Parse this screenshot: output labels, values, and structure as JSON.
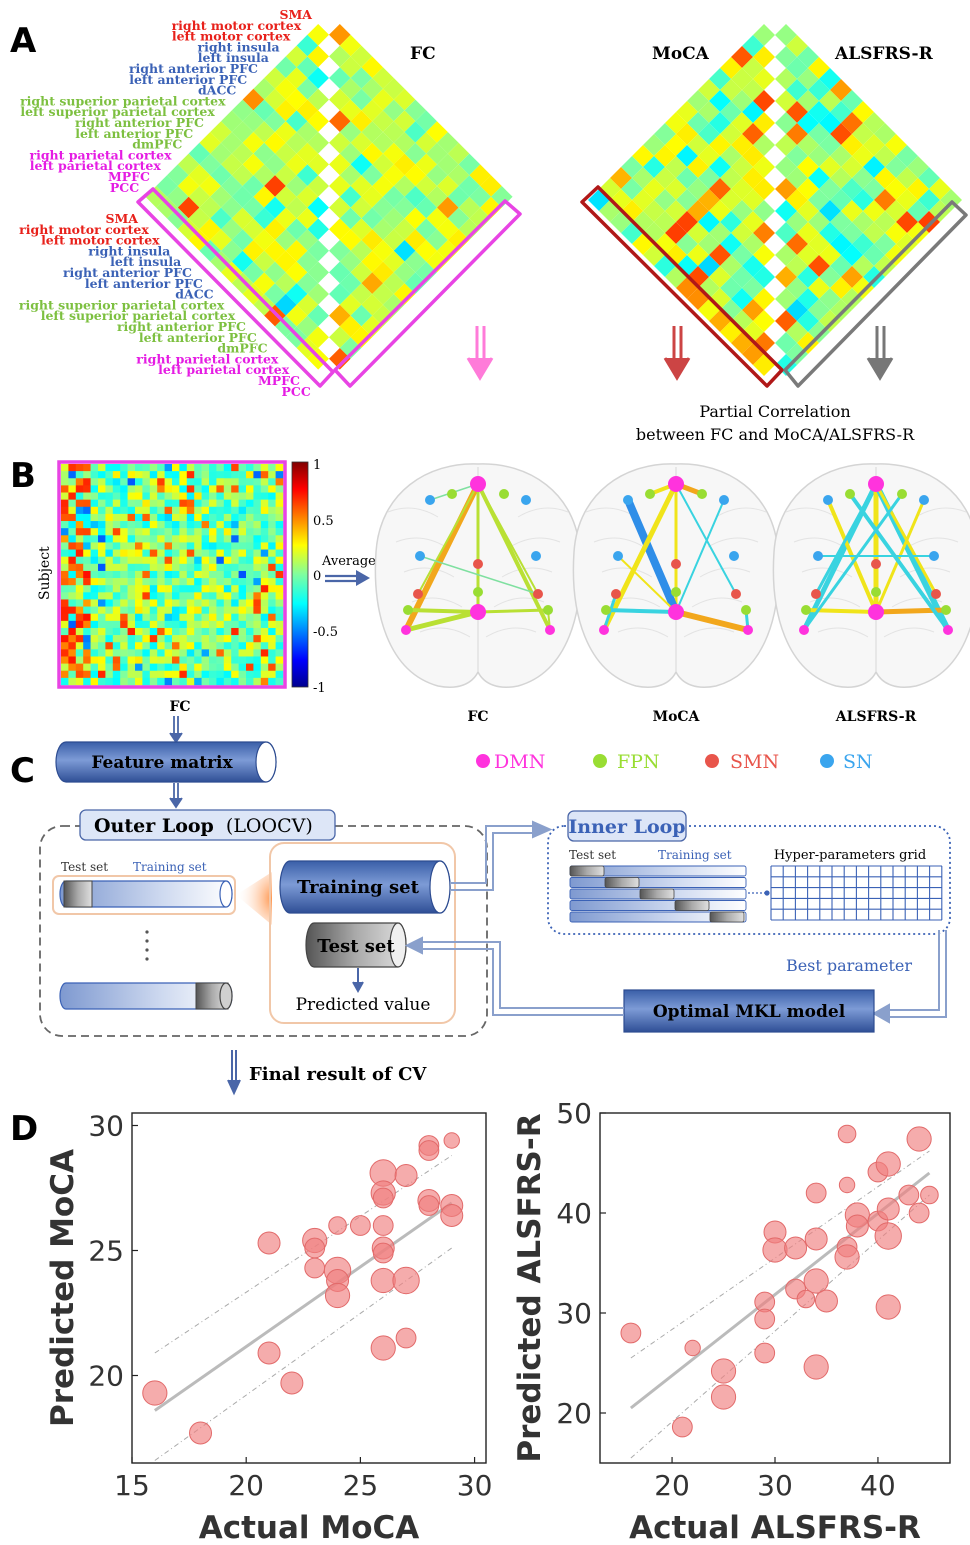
{
  "panels": {
    "a": "A",
    "b": "B",
    "c": "C",
    "d": "D"
  },
  "colors": {
    "dmn": "#ff33dd",
    "fpn": "#99dd33",
    "smn": "#e8554b",
    "sn": "#3aa5ee",
    "roi_red": "#e8211b",
    "roi_blue": "#3b62b6",
    "roi_green": "#7dc040",
    "roi_magenta": "#e51ce3",
    "box_magenta": "#e844e4",
    "box_darkred": "#b01818",
    "box_gray": "#7a7a7a",
    "arrow_pink": "#ff7bd9",
    "arrow_red": "#cc4444",
    "arrow_gray": "#777777",
    "flow_blue": "#7e95c4",
    "dot_red": "#f08080",
    "fit_gray": "#bbbbbb"
  },
  "panel_a": {
    "fc_title": "FC",
    "moca_title": "MoCA",
    "alsfrs_title": "ALSFRS-R",
    "rois_top": [
      {
        "label": "SMA",
        "color": "red"
      },
      {
        "label": "right motor cortex",
        "color": "red"
      },
      {
        "label": "left motor cortex",
        "color": "red"
      },
      {
        "label": "right insula",
        "color": "blue"
      },
      {
        "label": "left insula",
        "color": "blue"
      },
      {
        "label": "right anterior PFC",
        "color": "blue"
      },
      {
        "label": "left anterior PFC",
        "color": "blue"
      },
      {
        "label": "dACC",
        "color": "blue"
      },
      {
        "label": "right superior parietal cortex",
        "color": "green"
      },
      {
        "label": "left superior parietal cortex",
        "color": "green"
      },
      {
        "label": "right anterior PFC",
        "color": "green"
      },
      {
        "label": "left anterior PFC",
        "color": "green"
      },
      {
        "label": "dmPFC",
        "color": "green"
      },
      {
        "label": "right parietal cortex",
        "color": "magenta"
      },
      {
        "label": "left parietal cortex",
        "color": "magenta"
      },
      {
        "label": "MPFC",
        "color": "magenta"
      },
      {
        "label": "PCC",
        "color": "magenta"
      }
    ],
    "rois_bottom": [
      {
        "label": "SMA",
        "color": "red"
      },
      {
        "label": "right motor cortex",
        "color": "red"
      },
      {
        "label": "left motor cortex",
        "color": "red"
      },
      {
        "label": "right insula",
        "color": "blue"
      },
      {
        "label": "left insula",
        "color": "blue"
      },
      {
        "label": "right anterior PFC",
        "color": "blue"
      },
      {
        "label": "left anterior PFC",
        "color": "blue"
      },
      {
        "label": "dACC",
        "color": "blue"
      },
      {
        "label": "right superior parietal cortex",
        "color": "green"
      },
      {
        "label": "left superior parietal cortex",
        "color": "green"
      },
      {
        "label": "right anterior PFC",
        "color": "green"
      },
      {
        "label": "left anterior PFC",
        "color": "green"
      },
      {
        "label": "dmPFC",
        "color": "green"
      },
      {
        "label": "right parietal cortex",
        "color": "magenta"
      },
      {
        "label": "left parietal cortex",
        "color": "magenta"
      },
      {
        "label": "MPFC",
        "color": "magenta"
      },
      {
        "label": "PCC",
        "color": "magenta"
      }
    ],
    "partial_corr_line1": "Partial Correlation",
    "partial_corr_line2": "between FC and MoCA/ALSFRS-R"
  },
  "panel_b": {
    "subject_label": "Subject",
    "fc_label": "FC",
    "average_label": "Average",
    "colorbar_ticks": [
      "1",
      "0.5",
      "0",
      "-0.5",
      "-1"
    ],
    "brain_labels": [
      "FC",
      "MoCA",
      "ALSFRS-R"
    ]
  },
  "legend": [
    {
      "label": "DMN",
      "key": "dmn"
    },
    {
      "label": "FPN",
      "key": "fpn"
    },
    {
      "label": "SMN",
      "key": "smn"
    },
    {
      "label": "SN",
      "key": "sn"
    }
  ],
  "panel_c": {
    "feature_matrix": "Feature matrix",
    "outer_loop": "Outer Loop",
    "outer_loop_suffix": "(LOOCV)",
    "test_set_small": "Test set",
    "training_set_small": "Training set",
    "training_set_big": "Training set",
    "test_set_big": "Test set",
    "predicted_value": "Predicted value",
    "inner_loop": "Inner Loop",
    "inner_test": "Test set",
    "inner_training": "Training set",
    "hyper_grid": "Hyper-parameters grid",
    "best_parameter": "Best parameter",
    "optimal_model": "Optimal MKL model",
    "final_result": "Final result of CV"
  },
  "chart_data": [
    {
      "type": "scatter",
      "xlabel": "Actual MoCA",
      "ylabel": "Predicted MoCA",
      "xlim": [
        15,
        30.5
      ],
      "ylim": [
        16.5,
        30.5
      ],
      "xticks": [
        "15",
        "20",
        "25",
        "30"
      ],
      "yticks": [
        "20",
        "25",
        "30"
      ],
      "points": [
        {
          "x": 16,
          "y": 19.3,
          "size": 1.1
        },
        {
          "x": 18,
          "y": 17.7,
          "size": 1.0
        },
        {
          "x": 21,
          "y": 25.3,
          "size": 1.0
        },
        {
          "x": 21,
          "y": 20.9,
          "size": 1.0
        },
        {
          "x": 22,
          "y": 19.7,
          "size": 1.0
        },
        {
          "x": 23,
          "y": 25.4,
          "size": 1.1
        },
        {
          "x": 23,
          "y": 25.1,
          "size": 0.9
        },
        {
          "x": 23,
          "y": 24.3,
          "size": 0.9
        },
        {
          "x": 24,
          "y": 26.0,
          "size": 0.8
        },
        {
          "x": 24,
          "y": 24.2,
          "size": 1.2
        },
        {
          "x": 24,
          "y": 23.8,
          "size": 1.0
        },
        {
          "x": 24,
          "y": 23.2,
          "size": 1.1
        },
        {
          "x": 25,
          "y": 26.0,
          "size": 0.9
        },
        {
          "x": 26,
          "y": 28.1,
          "size": 1.2
        },
        {
          "x": 26,
          "y": 27.3,
          "size": 1.1
        },
        {
          "x": 26,
          "y": 27.1,
          "size": 0.9
        },
        {
          "x": 26,
          "y": 26.0,
          "size": 0.9
        },
        {
          "x": 26,
          "y": 25.1,
          "size": 1.0
        },
        {
          "x": 26,
          "y": 24.9,
          "size": 0.9
        },
        {
          "x": 26,
          "y": 23.8,
          "size": 1.1
        },
        {
          "x": 26,
          "y": 21.1,
          "size": 1.1
        },
        {
          "x": 27,
          "y": 28.0,
          "size": 1.0
        },
        {
          "x": 27,
          "y": 23.8,
          "size": 1.2
        },
        {
          "x": 27,
          "y": 21.5,
          "size": 0.9
        },
        {
          "x": 28,
          "y": 29.2,
          "size": 0.9
        },
        {
          "x": 28,
          "y": 29.0,
          "size": 0.9
        },
        {
          "x": 28,
          "y": 27.0,
          "size": 1.0
        },
        {
          "x": 28,
          "y": 26.8,
          "size": 0.9
        },
        {
          "x": 29,
          "y": 29.4,
          "size": 0.7
        },
        {
          "x": 29,
          "y": 26.8,
          "size": 1.0
        },
        {
          "x": 29,
          "y": 26.4,
          "size": 1.0
        }
      ],
      "fit": [
        [
          16,
          18.6
        ],
        [
          29,
          26.9
        ]
      ],
      "ci_upper": [
        [
          16,
          20.9
        ],
        [
          29,
          28.8
        ]
      ],
      "ci_lower": [
        [
          16,
          16.6
        ],
        [
          29,
          25.1
        ]
      ]
    },
    {
      "type": "scatter",
      "xlabel": "Actual ALSFRS-R",
      "ylabel": "Predicted ALSFRS-R",
      "xlim": [
        13,
        47
      ],
      "ylim": [
        15,
        50
      ],
      "xticks": [
        "20",
        "30",
        "40"
      ],
      "yticks": [
        "20",
        "30",
        "40",
        "50"
      ],
      "points": [
        {
          "x": 16,
          "y": 28.0,
          "size": 0.9
        },
        {
          "x": 21,
          "y": 18.6,
          "size": 0.9
        },
        {
          "x": 22,
          "y": 26.5,
          "size": 0.7
        },
        {
          "x": 25,
          "y": 24.2,
          "size": 1.1
        },
        {
          "x": 25,
          "y": 21.6,
          "size": 1.1
        },
        {
          "x": 29,
          "y": 31.1,
          "size": 0.9
        },
        {
          "x": 29,
          "y": 29.4,
          "size": 0.9
        },
        {
          "x": 29,
          "y": 26.0,
          "size": 0.9
        },
        {
          "x": 30,
          "y": 38.1,
          "size": 1.0
        },
        {
          "x": 30,
          "y": 36.3,
          "size": 1.1
        },
        {
          "x": 32,
          "y": 36.5,
          "size": 1.0
        },
        {
          "x": 32,
          "y": 32.4,
          "size": 0.9
        },
        {
          "x": 33,
          "y": 31.4,
          "size": 0.8
        },
        {
          "x": 34,
          "y": 42.0,
          "size": 0.9
        },
        {
          "x": 34,
          "y": 37.4,
          "size": 1.0
        },
        {
          "x": 34,
          "y": 33.2,
          "size": 1.1
        },
        {
          "x": 34,
          "y": 24.6,
          "size": 1.1
        },
        {
          "x": 35,
          "y": 31.2,
          "size": 1.0
        },
        {
          "x": 37,
          "y": 47.9,
          "size": 0.8
        },
        {
          "x": 37,
          "y": 42.8,
          "size": 0.7
        },
        {
          "x": 37,
          "y": 36.6,
          "size": 0.9
        },
        {
          "x": 37,
          "y": 35.6,
          "size": 1.1
        },
        {
          "x": 38,
          "y": 39.8,
          "size": 1.1
        },
        {
          "x": 38,
          "y": 38.7,
          "size": 1.0
        },
        {
          "x": 40,
          "y": 44.1,
          "size": 0.9
        },
        {
          "x": 40,
          "y": 39.2,
          "size": 0.9
        },
        {
          "x": 41,
          "y": 44.9,
          "size": 1.1
        },
        {
          "x": 41,
          "y": 40.4,
          "size": 1.0
        },
        {
          "x": 41,
          "y": 37.7,
          "size": 1.2
        },
        {
          "x": 41,
          "y": 30.6,
          "size": 1.1
        },
        {
          "x": 43,
          "y": 41.8,
          "size": 0.9
        },
        {
          "x": 44,
          "y": 47.4,
          "size": 1.1
        },
        {
          "x": 44,
          "y": 40.0,
          "size": 0.9
        },
        {
          "x": 45,
          "y": 41.8,
          "size": 0.8
        }
      ],
      "fit": [
        [
          16,
          20.5
        ],
        [
          45,
          44.0
        ]
      ],
      "ci_upper": [
        [
          16,
          25.5
        ],
        [
          45,
          46.2
        ]
      ],
      "ci_lower": [
        [
          16,
          15.5
        ],
        [
          45,
          41.8
        ]
      ]
    }
  ]
}
